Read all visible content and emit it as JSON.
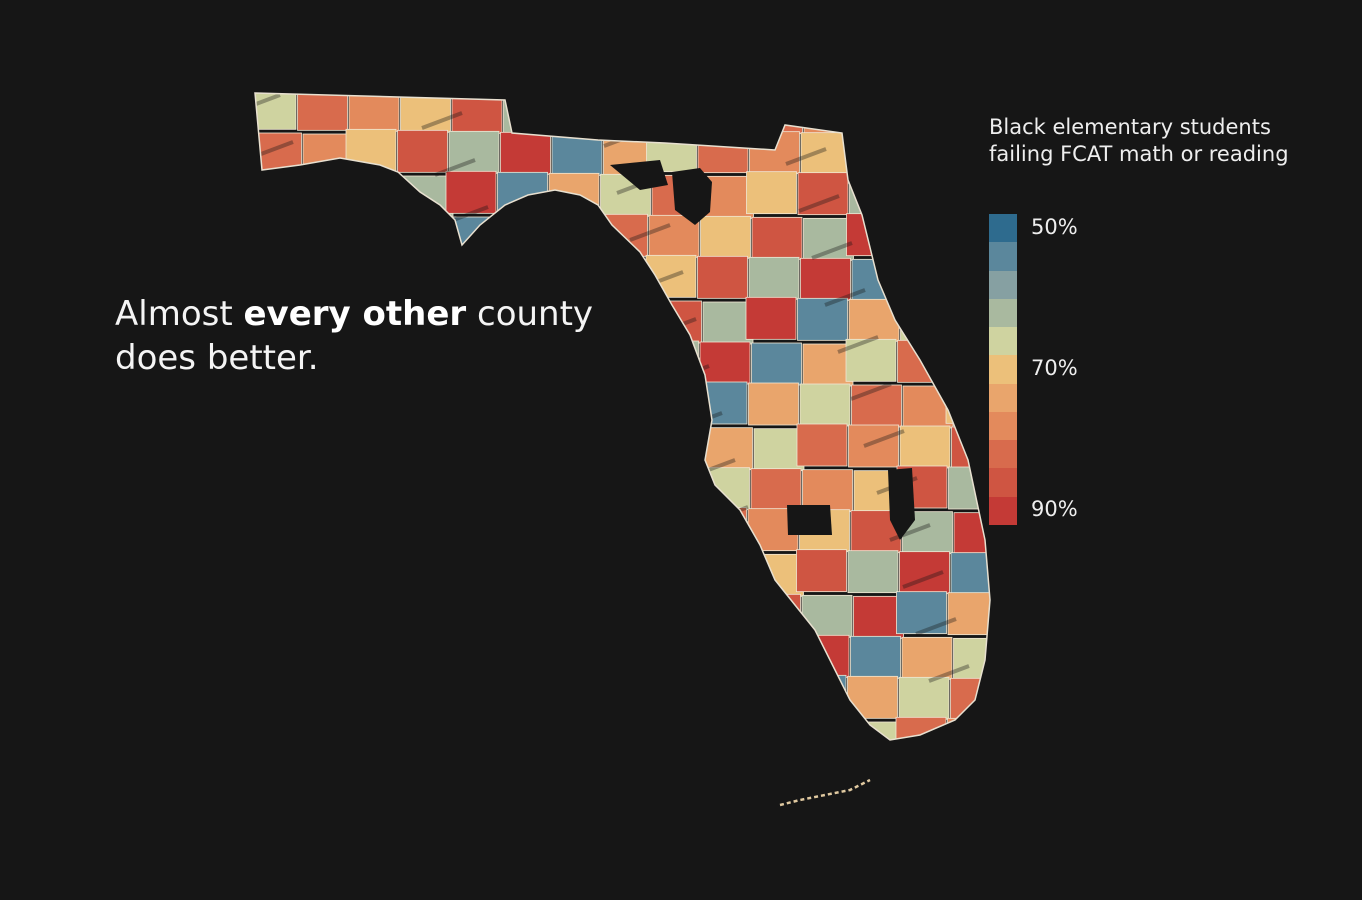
{
  "headline": {
    "pre": "Almost ",
    "emphasis": "every other",
    "post": " county does better."
  },
  "legend": {
    "title_line1": "Black elementary students",
    "title_line2": "failing FCAT math or reading",
    "ticks": [
      "50%",
      "70%",
      "90%"
    ],
    "colors": [
      "#2e6b8e",
      "#5b879c",
      "#86a0a2",
      "#a9b99f",
      "#cfd3a0",
      "#ecc07a",
      "#e9a56c",
      "#e38a5c",
      "#d86b4d",
      "#cf5542",
      "#c43a36"
    ]
  },
  "map": {
    "title": "Florida counties",
    "highlight": "Black",
    "county_colors": [
      "#d86b4d",
      "#a9b99f",
      "#cfd3a0",
      "#cf5542",
      "#e9a56c",
      "#ecc07a",
      "#5b879c",
      "#e38a5c",
      "#c43a36"
    ]
  }
}
